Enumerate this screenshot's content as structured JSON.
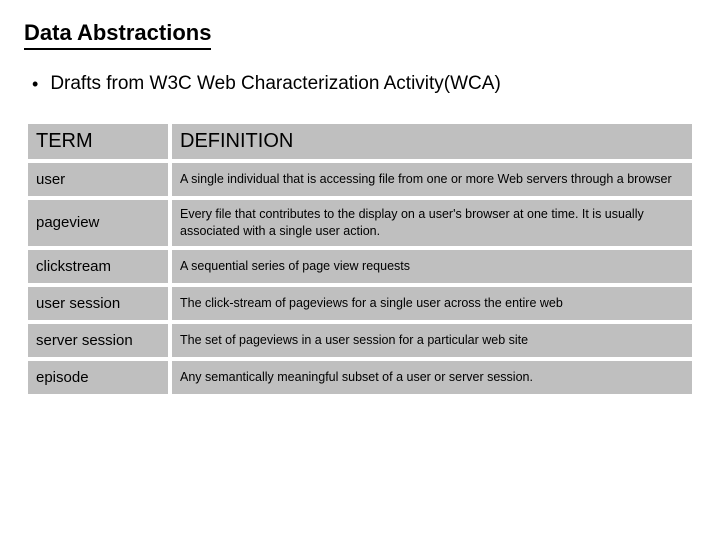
{
  "title": "Data Abstractions",
  "bullet": "Drafts from W3C Web Characterization Activity(WCA)",
  "table": {
    "header_term": "TERM",
    "header_def": "DEFINITION",
    "rows": [
      {
        "term": "user",
        "def": "A single individual that is accessing file from one or more Web servers through a browser"
      },
      {
        "term": "pageview",
        "def": "Every file that contributes to the display on a user's browser at one time. It is usually associated with a single user action."
      },
      {
        "term": "clickstream",
        "def": "A sequential series of page view requests"
      },
      {
        "term": "user session",
        "def": "The click-stream of pageviews for a single user across the entire web"
      },
      {
        "term": "server session",
        "def": "The set of pageviews in a user session for a particular web site"
      },
      {
        "term": "episode",
        "def": "Any semantically meaningful subset of a user or server session."
      }
    ]
  },
  "colors": {
    "background": "#ffffff",
    "text": "#000000",
    "cell_bg": "#bfbfbf",
    "underline": "#000000"
  }
}
